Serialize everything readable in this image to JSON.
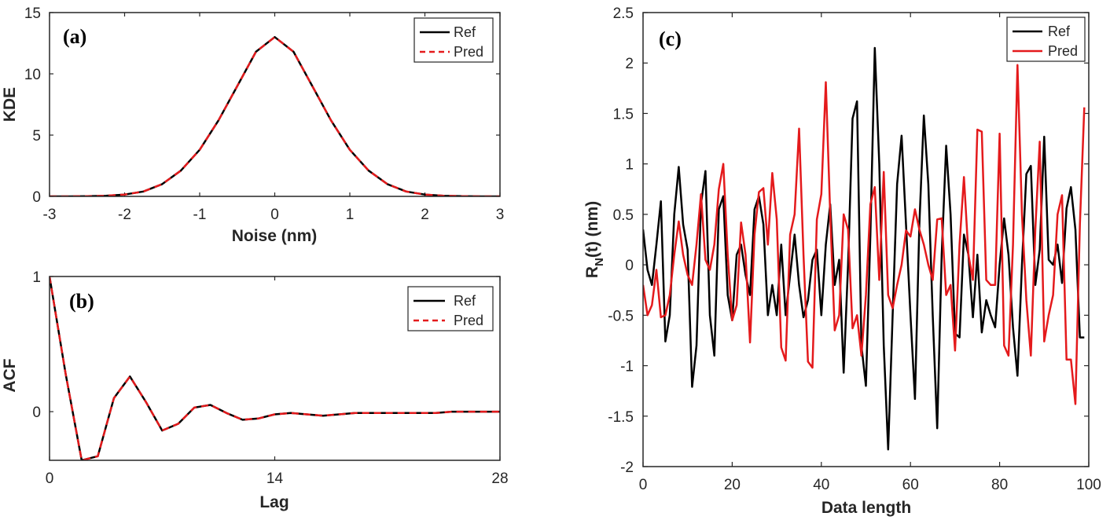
{
  "colors": {
    "ref": "#000000",
    "pred": "#e41a1c",
    "axis": "#262626"
  },
  "chart_data": [
    {
      "id": "a",
      "type": "line",
      "panel_label": "(a)",
      "xlabel": "Noise (nm)",
      "ylabel": "KDE",
      "xlim": [
        -3,
        3
      ],
      "ylim": [
        0,
        15
      ],
      "xticks": [
        -3,
        -2,
        -1,
        0,
        1,
        2,
        3
      ],
      "xticklabels": [
        "-3",
        "-2",
        "-1",
        "0",
        "1",
        "2",
        "3"
      ],
      "yticks": [
        0,
        5,
        10,
        15
      ],
      "yticklabels": [
        "0",
        "5",
        "10",
        "15"
      ],
      "legend": [
        "Ref",
        "Pred"
      ],
      "legend_position": "top-right",
      "series": [
        {
          "name": "Ref",
          "style": "solid",
          "color": "#000000",
          "x": [
            -3,
            -2.75,
            -2.5,
            -2.25,
            -2,
            -1.75,
            -1.5,
            -1.25,
            -1,
            -0.75,
            -0.5,
            -0.25,
            0,
            0.25,
            0.5,
            0.75,
            1,
            1.25,
            1.5,
            1.75,
            2,
            2.25,
            2.5,
            2.75,
            3
          ],
          "y": [
            0,
            0,
            0.02,
            0.05,
            0.15,
            0.4,
            1.0,
            2.1,
            3.8,
            6.2,
            9.0,
            11.8,
            13.0,
            11.8,
            9.0,
            6.2,
            3.8,
            2.1,
            1.0,
            0.4,
            0.15,
            0.05,
            0.02,
            0,
            0
          ]
        },
        {
          "name": "Pred",
          "style": "dashed",
          "color": "#e41a1c",
          "x": [
            -3,
            -2.75,
            -2.5,
            -2.25,
            -2,
            -1.75,
            -1.5,
            -1.25,
            -1,
            -0.75,
            -0.5,
            -0.25,
            0,
            0.25,
            0.5,
            0.75,
            1,
            1.25,
            1.5,
            1.75,
            2,
            2.25,
            2.5,
            2.75,
            3
          ],
          "y": [
            0,
            0,
            0.02,
            0.05,
            0.15,
            0.4,
            1.0,
            2.1,
            3.8,
            6.2,
            9.0,
            11.8,
            13.0,
            11.8,
            9.0,
            6.2,
            3.8,
            2.1,
            1.0,
            0.4,
            0.15,
            0.05,
            0.02,
            0,
            0
          ]
        }
      ]
    },
    {
      "id": "b",
      "type": "line",
      "panel_label": "(b)",
      "xlabel": "Lag",
      "ylabel": "ACF",
      "xlim": [
        0,
        28
      ],
      "ylim": [
        -0.36,
        1
      ],
      "xticks": [
        0,
        14,
        28
      ],
      "xticklabels": [
        "0",
        "14",
        "28"
      ],
      "yticks": [
        0,
        1
      ],
      "yticklabels": [
        "0",
        "1"
      ],
      "legend": [
        "Ref",
        "Pred"
      ],
      "legend_position": "top-right",
      "series": [
        {
          "name": "Ref",
          "style": "solid",
          "color": "#000000",
          "x": [
            0,
            1,
            2,
            3,
            4,
            5,
            6,
            7,
            8,
            9,
            10,
            11,
            12,
            13,
            14,
            15,
            16,
            17,
            18,
            19,
            20,
            21,
            22,
            23,
            24,
            25,
            26,
            27,
            28
          ],
          "y": [
            1.0,
            0.28,
            -0.36,
            -0.33,
            0.1,
            0.26,
            0.07,
            -0.14,
            -0.09,
            0.03,
            0.05,
            -0.01,
            -0.06,
            -0.05,
            -0.02,
            -0.01,
            -0.02,
            -0.03,
            -0.02,
            -0.01,
            -0.01,
            -0.01,
            -0.01,
            -0.01,
            -0.01,
            0.0,
            0.0,
            0.0,
            0.0
          ]
        },
        {
          "name": "Pred",
          "style": "dashed",
          "color": "#e41a1c",
          "x": [
            0,
            1,
            2,
            3,
            4,
            5,
            6,
            7,
            8,
            9,
            10,
            11,
            12,
            13,
            14,
            15,
            16,
            17,
            18,
            19,
            20,
            21,
            22,
            23,
            24,
            25,
            26,
            27,
            28
          ],
          "y": [
            1.0,
            0.28,
            -0.36,
            -0.33,
            0.1,
            0.26,
            0.07,
            -0.14,
            -0.09,
            0.03,
            0.05,
            -0.01,
            -0.06,
            -0.05,
            -0.02,
            -0.01,
            -0.02,
            -0.03,
            -0.02,
            -0.01,
            -0.01,
            -0.01,
            -0.01,
            -0.01,
            -0.01,
            0.0,
            0.0,
            0.0,
            0.0
          ]
        }
      ]
    },
    {
      "id": "c",
      "type": "line",
      "panel_label": "(c)",
      "xlabel": "Data length",
      "ylabel": "R_N(t) (nm)",
      "ylabel_main": "R",
      "ylabel_sub": "N",
      "ylabel_rest": "(t) (nm)",
      "xlim": [
        0,
        100
      ],
      "ylim": [
        -2,
        2.5
      ],
      "xticks": [
        0,
        20,
        40,
        60,
        80,
        100
      ],
      "xticklabels": [
        "0",
        "20",
        "40",
        "60",
        "80",
        "100"
      ],
      "yticks": [
        -2,
        -1.5,
        -1,
        -0.5,
        0,
        0.5,
        1,
        1.5,
        2,
        2.5
      ],
      "yticklabels": [
        "-2",
        "-1.5",
        "-1",
        "-0.5",
        "0",
        "0.5",
        "1",
        "1.5",
        "2",
        "2.5"
      ],
      "legend": [
        "Ref",
        "Pred"
      ],
      "legend_position": "top-right",
      "series": [
        {
          "name": "Ref",
          "style": "solid",
          "color": "#000000",
          "x": [
            0,
            1,
            2,
            3,
            4,
            5,
            6,
            7,
            8,
            9,
            10,
            11,
            12,
            13,
            14,
            15,
            16,
            17,
            18,
            19,
            20,
            21,
            22,
            23,
            24,
            25,
            26,
            27,
            28,
            29,
            30,
            31,
            32,
            33,
            34,
            35,
            36,
            37,
            38,
            39,
            40,
            41,
            42,
            43,
            44,
            45,
            46,
            47,
            48,
            49,
            50,
            51,
            52,
            53,
            54,
            55,
            56,
            57,
            58,
            59,
            60,
            61,
            62,
            63,
            64,
            65,
            66,
            67,
            68,
            69,
            70,
            71,
            72,
            73,
            74,
            75,
            76,
            77,
            78,
            79,
            80,
            81,
            82,
            83,
            84,
            85,
            86,
            87,
            88,
            89,
            90,
            91,
            92,
            93,
            94,
            95,
            96,
            97,
            98,
            99
          ],
          "y": [
            0.35,
            -0.05,
            -0.2,
            0.2,
            0.63,
            -0.76,
            -0.5,
            0.5,
            0.97,
            0.4,
            0.15,
            -1.21,
            -0.8,
            0.6,
            0.93,
            -0.5,
            -0.9,
            0.55,
            0.68,
            -0.3,
            -0.55,
            0.1,
            0.2,
            -0.1,
            -0.3,
            0.55,
            0.68,
            0.4,
            -0.5,
            -0.2,
            -0.5,
            0.2,
            -0.5,
            -0.1,
            0.3,
            -0.2,
            -0.52,
            -0.35,
            0.05,
            0.15,
            -0.5,
            0.2,
            0.6,
            -0.2,
            0.05,
            -1.07,
            0.0,
            1.45,
            1.62,
            -0.8,
            -1.2,
            0.3,
            2.15,
            1.0,
            -0.8,
            -1.83,
            -0.5,
            0.8,
            1.28,
            0.4,
            -0.5,
            -1.33,
            0.4,
            1.48,
            0.8,
            -0.5,
            -1.62,
            0.1,
            1.18,
            0.5,
            -0.68,
            -0.72,
            0.3,
            0.1,
            -0.52,
            0.1,
            -0.67,
            -0.35,
            -0.5,
            -0.62,
            0.0,
            0.46,
            0.1,
            -0.62,
            -1.1,
            0.0,
            0.9,
            0.98,
            -0.2,
            0.15,
            1.27,
            0.05,
            0.0,
            0.2,
            -0.18,
            0.56,
            0.77,
            0.35,
            -0.72,
            -0.72
          ]
        },
        {
          "name": "Pred",
          "style": "solid",
          "color": "#e41a1c",
          "x": [
            0,
            1,
            2,
            3,
            4,
            5,
            6,
            7,
            8,
            9,
            10,
            11,
            12,
            13,
            14,
            15,
            16,
            17,
            18,
            19,
            20,
            21,
            22,
            23,
            24,
            25,
            26,
            27,
            28,
            29,
            30,
            31,
            32,
            33,
            34,
            35,
            36,
            37,
            38,
            39,
            40,
            41,
            42,
            43,
            44,
            45,
            46,
            47,
            48,
            49,
            50,
            51,
            52,
            53,
            54,
            55,
            56,
            57,
            58,
            59,
            60,
            61,
            62,
            63,
            64,
            65,
            66,
            67,
            68,
            69,
            70,
            71,
            72,
            73,
            74,
            75,
            76,
            77,
            78,
            79,
            80,
            81,
            82,
            83,
            84,
            85,
            86,
            87,
            88,
            89,
            90,
            91,
            92,
            93,
            94,
            95,
            96,
            97,
            98,
            99
          ],
          "y": [
            -0.2,
            -0.5,
            -0.4,
            -0.05,
            -0.52,
            -0.5,
            -0.3,
            0.1,
            0.43,
            0.1,
            -0.1,
            -0.2,
            0.2,
            0.7,
            0.05,
            -0.05,
            0.2,
            0.75,
            1.0,
            0.1,
            -0.55,
            -0.4,
            0.42,
            0.1,
            -0.77,
            0.3,
            0.72,
            0.76,
            0.2,
            0.91,
            0.45,
            -0.82,
            -0.95,
            0.3,
            0.5,
            1.35,
            0.1,
            -0.96,
            -1.02,
            0.45,
            0.7,
            1.81,
            0.5,
            -0.65,
            -0.5,
            0.5,
            0.35,
            -0.63,
            -0.5,
            -0.9,
            -0.3,
            0.6,
            0.77,
            -0.15,
            0.92,
            -0.3,
            -0.43,
            -0.2,
            0.0,
            0.34,
            0.28,
            0.55,
            0.35,
            0.2,
            0.0,
            -0.15,
            0.45,
            0.46,
            -0.3,
            -0.2,
            -0.85,
            0.2,
            0.87,
            0.1,
            -0.15,
            1.34,
            1.32,
            -0.15,
            -0.2,
            -0.2,
            1.3,
            -0.8,
            -0.9,
            0.2,
            1.98,
            0.5,
            -0.35,
            -0.9,
            0.35,
            1.22,
            -0.76,
            -0.5,
            -0.3,
            0.5,
            0.69,
            -0.94,
            -0.94,
            -1.38,
            0.4,
            1.56
          ]
        }
      ]
    }
  ]
}
